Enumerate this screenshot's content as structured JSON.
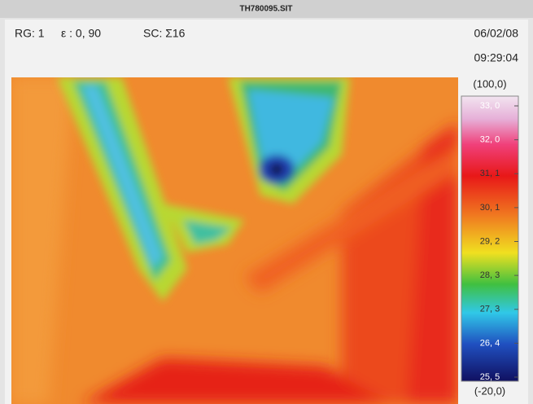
{
  "window": {
    "title": "TH780095.SIT"
  },
  "header": {
    "range": "RG: 1",
    "emissivity": "ε : 0, 90",
    "scale": "SC: Σ16",
    "date": "06/02/08",
    "time": "09:29:04"
  },
  "scale": {
    "top": "(100,0)",
    "bottom": "(-20,0)",
    "labels": [
      "33, 0",
      "32, 0",
      "31, 1",
      "30, 1",
      "29, 2",
      "28, 3",
      "27, 3",
      "26, 4",
      "25, 5"
    ]
  }
}
